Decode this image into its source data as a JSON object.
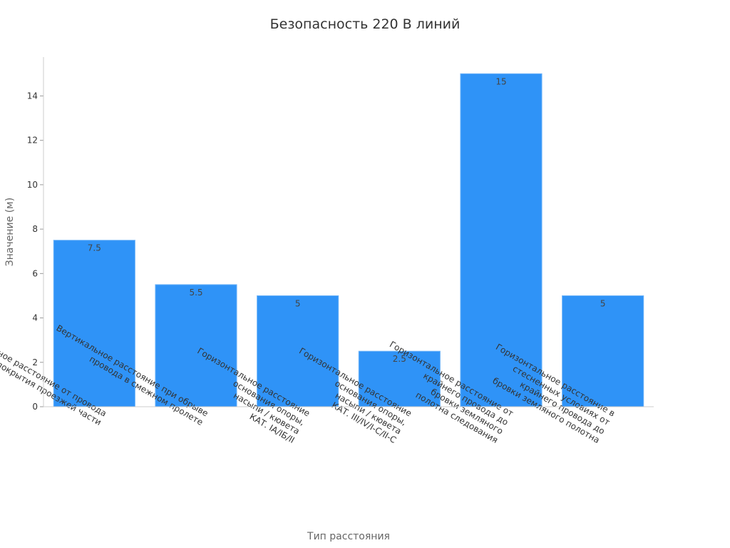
{
  "chart_data": {
    "type": "bar",
    "title": "Безопасность 220 В линий",
    "xlabel": "Тип расстояния",
    "ylabel": "Значение (м)",
    "ylim": [
      0,
      15.75
    ],
    "yticks": [
      0,
      2,
      4,
      6,
      8,
      10,
      12,
      14
    ],
    "grid": false,
    "bar_color": "#2f93f7",
    "bar_edge_color": "#6fb4f8",
    "categories": [
      [
        "Вертикальное расстояние от провода",
        "до покрытия проезжей части"
      ],
      [
        "Вертикальное расстояние при обрыве",
        "провода в смежном пролете"
      ],
      [
        "Горизонтальное расстояние",
        "основания опоры,",
        "насыпи / кювета",
        "КАТ. IA/IБ/II"
      ],
      [
        "Горизонтальное расстояние",
        "основания опоры,",
        "насыпи / кювета",
        "КАТ. III/IV/I-C/II-C"
      ],
      [
        "Горизонтальное расстояние от",
        "крайнего провода до",
        "бровки земляного",
        "полотна следования"
      ],
      [
        "Горизонтальное расстояние в",
        "стесненных условиях от",
        "крайнего провода до",
        "бровки земляного полотна"
      ]
    ],
    "values": [
      7.5,
      5.5,
      5,
      2.5,
      15,
      5
    ],
    "value_labels": [
      "7.5",
      "5.5",
      "5",
      "2.5",
      "15",
      "5"
    ]
  }
}
